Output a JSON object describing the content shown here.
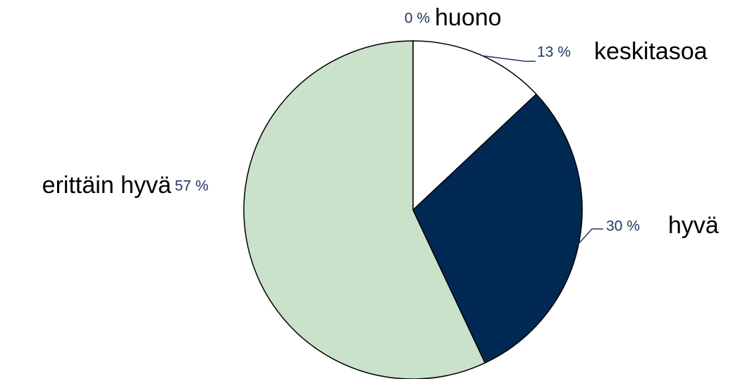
{
  "chart_data": {
    "type": "pie",
    "categories": [
      "huono",
      "keskitasoa",
      "hyvä",
      "erittäin hyvä"
    ],
    "values": [
      0,
      13,
      30,
      57
    ],
    "value_labels": [
      "0 %",
      "13 %",
      "30 %",
      "57 %"
    ],
    "colors": [
      "#ffffff",
      "#ffffff",
      "#002a54",
      "#c9e2c9"
    ]
  }
}
